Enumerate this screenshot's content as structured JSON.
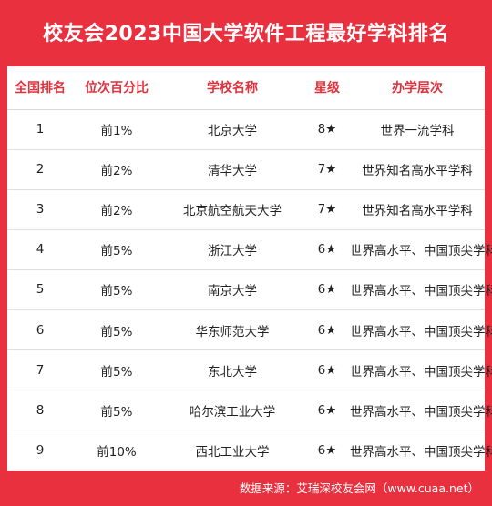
{
  "title": "校友会2023中国大学软件工程最好学科排名",
  "table": {
    "headers": [
      "全国排名",
      "位次百分比",
      "学校名称",
      "星级",
      "办学层次"
    ],
    "rows": [
      [
        "1",
        "前1%",
        "北京大学",
        "8★",
        "世界一流学科"
      ],
      [
        "2",
        "前2%",
        "清华大学",
        "7★",
        "世界知名高水平学科"
      ],
      [
        "3",
        "前2%",
        "北京航空航天大学",
        "7★",
        "世界知名高水平学科"
      ],
      [
        "4",
        "前5%",
        "浙江大学",
        "6★",
        "世界高水平、中国顶尖学科"
      ],
      [
        "5",
        "前5%",
        "南京大学",
        "6★",
        "世界高水平、中国顶尖学科"
      ],
      [
        "6",
        "前5%",
        "华东师范大学",
        "6★",
        "世界高水平、中国顶尖学科"
      ],
      [
        "7",
        "前5%",
        "东北大学",
        "6★",
        "世界高水平、中国顶尖学科"
      ],
      [
        "8",
        "前5%",
        "哈尔滨工业大学",
        "6★",
        "世界高水平、中国顶尖学科"
      ],
      [
        "9",
        "前10%",
        "西北工业大学",
        "6★",
        "世界高水平、中国顶尖学科"
      ]
    ]
  },
  "footer": "数据来源：艾瑞深校友会网（www.cuaa.net）",
  "colors": {
    "background": "#e8303f",
    "header_text": "#e0313c",
    "panel": "#ffffff"
  }
}
